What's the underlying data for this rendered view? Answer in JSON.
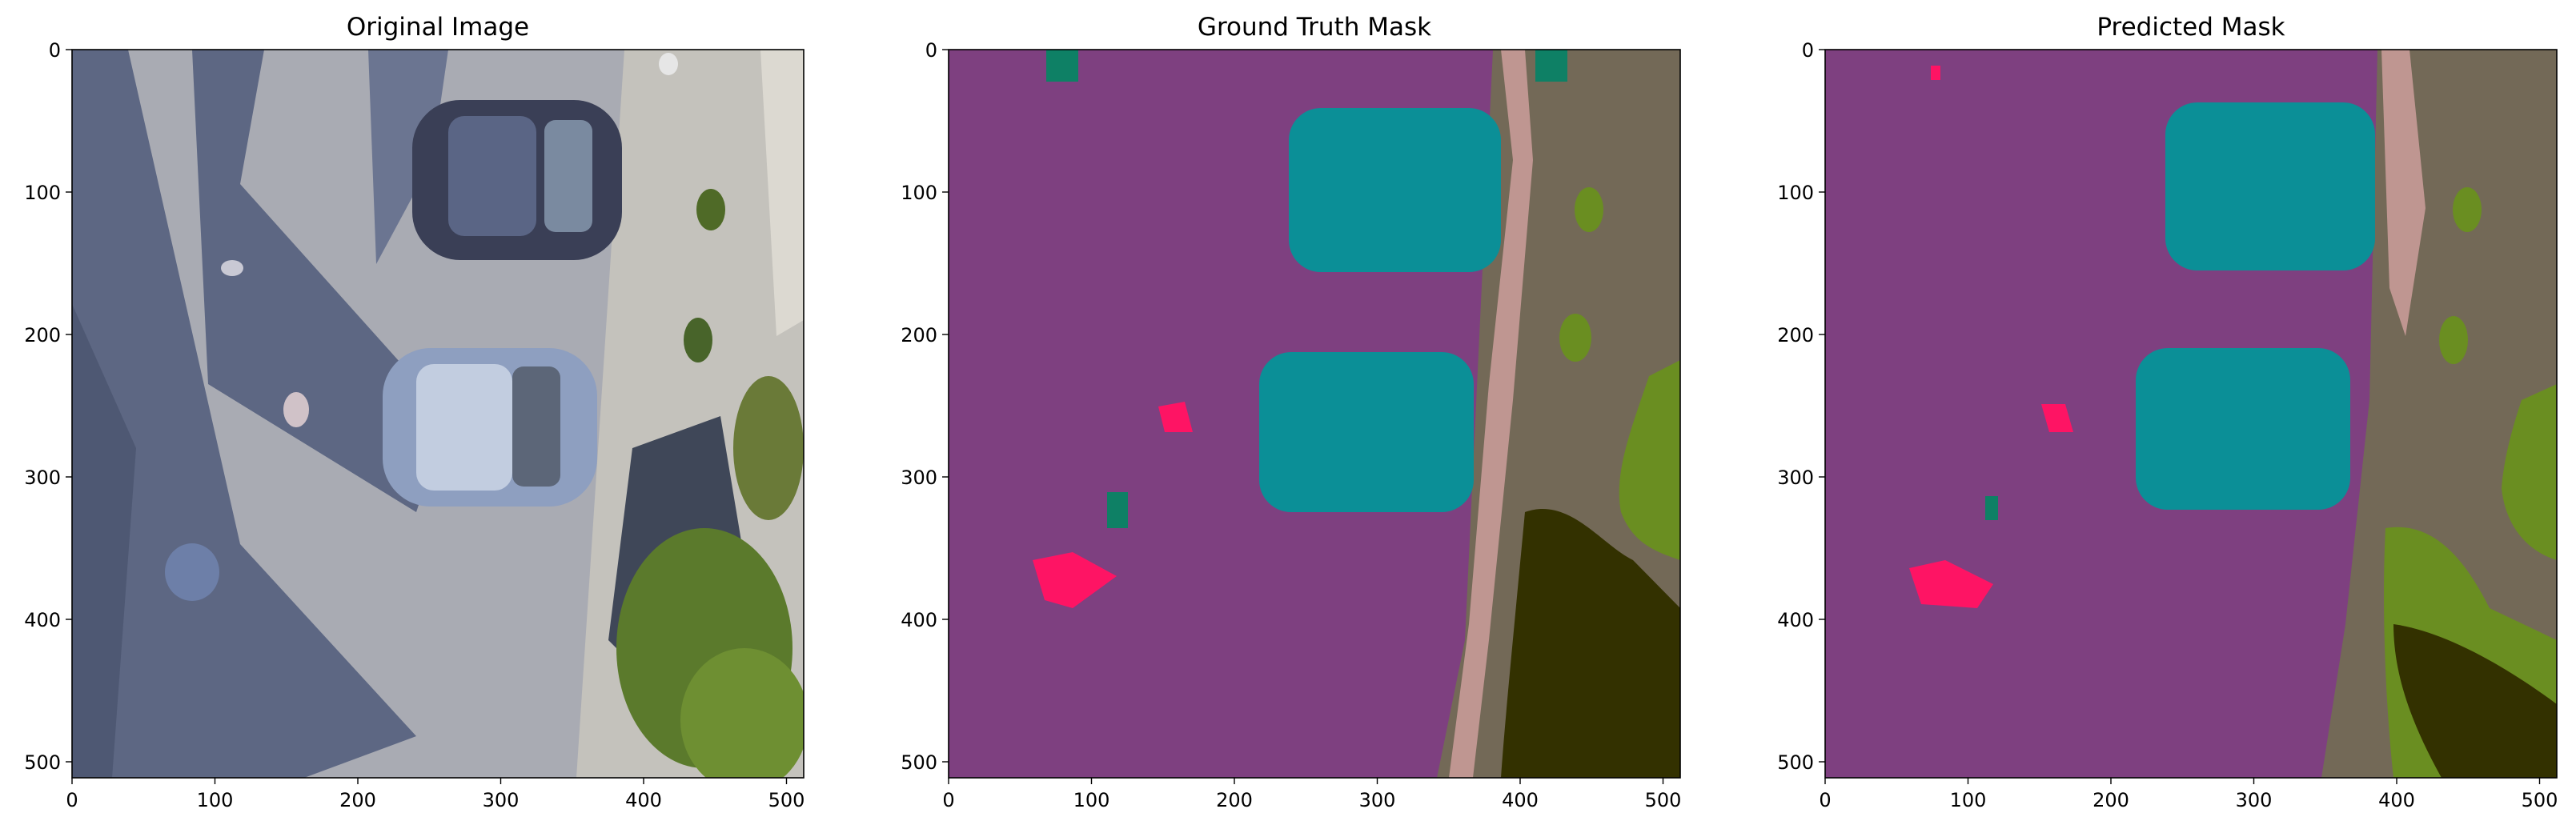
{
  "figure": {
    "panels": [
      {
        "id": "original",
        "title": "Original Image",
        "x_ticks": [
          "0",
          "100",
          "200",
          "300",
          "400",
          "500"
        ],
        "y_ticks": [
          "0",
          "100",
          "200",
          "300",
          "400",
          "500"
        ]
      },
      {
        "id": "ground-truth",
        "title": "Ground Truth Mask",
        "x_ticks": [
          "0",
          "100",
          "200",
          "300",
          "400",
          "500"
        ],
        "y_ticks": [
          "0",
          "100",
          "200",
          "300",
          "400",
          "500"
        ]
      },
      {
        "id": "predicted",
        "title": "Predicted Mask",
        "x_ticks": [
          "0",
          "100",
          "200",
          "300",
          "400",
          "500"
        ],
        "y_ticks": [
          "0",
          "100",
          "200",
          "300",
          "400",
          "500"
        ]
      }
    ],
    "axis_range": [
      0,
      512
    ],
    "mask_colors": {
      "background": "#7e4080",
      "road": "#736957",
      "path": "#bf9691",
      "car": "#0b8f97",
      "person": "#fe1464",
      "vegetation": "#6a8e21",
      "tree": "#333100",
      "object": "#0e8065"
    }
  }
}
